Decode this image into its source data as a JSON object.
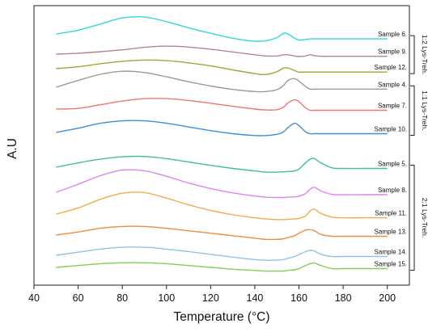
{
  "chart_data": {
    "type": "line",
    "title": "",
    "xlabel": "Temperature (°C)",
    "ylabel": "A.U",
    "xlim": [
      40,
      210
    ],
    "x_ticks": [
      "40",
      "60",
      "80",
      "100",
      "120",
      "140",
      "160",
      "180",
      "200"
    ],
    "y_ticks": [],
    "grid": false,
    "legend": "none",
    "x": [
      50,
      60,
      70,
      80,
      90,
      100,
      110,
      120,
      130,
      140,
      145,
      150,
      153,
      155,
      158,
      160,
      163,
      165,
      167,
      170,
      175,
      180,
      190,
      200
    ],
    "series": [
      {
        "name": "Sample 6.",
        "color": "#2fd8dc",
        "values": [
          0.0,
          0.12,
          0.32,
          0.52,
          0.55,
          0.4,
          0.2,
          0.02,
          -0.14,
          -0.24,
          -0.22,
          -0.12,
          0.02,
          0.0,
          -0.14,
          -0.2,
          -0.18,
          -0.16,
          -0.16,
          -0.16,
          -0.16,
          -0.16,
          -0.16,
          -0.16
        ]
      },
      {
        "name": "Sample 9.",
        "color": "#b5868a",
        "values": [
          0.0,
          0.03,
          0.08,
          0.14,
          0.22,
          0.26,
          0.23,
          0.16,
          0.07,
          -0.02,
          -0.06,
          -0.06,
          -0.02,
          -0.02,
          -0.06,
          -0.08,
          -0.06,
          -0.02,
          -0.05,
          -0.07,
          -0.07,
          -0.07,
          -0.07,
          -0.07
        ]
      },
      {
        "name": "Sample 12.",
        "color": "#a3a63a",
        "values": [
          0.0,
          0.06,
          0.16,
          0.24,
          0.28,
          0.26,
          0.19,
          0.09,
          -0.04,
          -0.16,
          -0.19,
          -0.1,
          0.02,
          0.02,
          -0.06,
          -0.11,
          -0.11,
          -0.11,
          -0.11,
          -0.11,
          -0.11,
          -0.11,
          -0.11,
          -0.11
        ]
      },
      {
        "name": "Sample 4.",
        "color": "#9a9a9a",
        "values": [
          0.0,
          0.22,
          0.42,
          0.52,
          0.48,
          0.34,
          0.18,
          0.04,
          -0.07,
          -0.14,
          -0.14,
          -0.08,
          0.06,
          0.22,
          0.28,
          0.2,
          0.02,
          -0.06,
          -0.06,
          -0.06,
          -0.06,
          -0.06,
          -0.06,
          -0.06
        ]
      },
      {
        "name": "Sample 7.",
        "color": "#f2766d",
        "values": [
          0.0,
          0.02,
          0.14,
          0.26,
          0.34,
          0.34,
          0.28,
          0.19,
          0.09,
          0.0,
          -0.03,
          -0.02,
          0.06,
          0.2,
          0.3,
          0.24,
          0.04,
          -0.04,
          -0.04,
          -0.04,
          -0.04,
          -0.04,
          -0.04,
          -0.04
        ]
      },
      {
        "name": "Sample 10.",
        "color": "#3c8fd6",
        "values": [
          0.0,
          0.14,
          0.3,
          0.38,
          0.38,
          0.3,
          0.18,
          0.06,
          -0.04,
          -0.1,
          -0.1,
          -0.06,
          0.02,
          0.16,
          0.3,
          0.22,
          0.02,
          -0.04,
          -0.04,
          -0.04,
          -0.04,
          -0.04,
          -0.04,
          -0.04
        ]
      },
      {
        "name": "Sample 5.",
        "color": "#3fc389",
        "values": [
          0.0,
          0.14,
          0.26,
          0.34,
          0.35,
          0.28,
          0.17,
          0.06,
          -0.04,
          -0.12,
          -0.16,
          -0.16,
          -0.15,
          -0.14,
          -0.12,
          -0.06,
          0.14,
          0.26,
          0.28,
          0.14,
          -0.02,
          -0.04,
          -0.04,
          -0.04
        ]
      },
      {
        "name": "Sample 8.",
        "color": "#dd84ee",
        "values": [
          0.0,
          0.26,
          0.54,
          0.72,
          0.7,
          0.52,
          0.3,
          0.12,
          -0.02,
          -0.12,
          -0.16,
          -0.17,
          -0.17,
          -0.16,
          -0.15,
          -0.13,
          -0.04,
          0.1,
          0.16,
          0.04,
          -0.07,
          -0.08,
          -0.08,
          -0.08
        ]
      },
      {
        "name": "Sample 11.",
        "color": "#f0ac4a",
        "values": [
          0.0,
          0.2,
          0.48,
          0.68,
          0.7,
          0.52,
          0.3,
          0.12,
          -0.02,
          -0.12,
          -0.16,
          -0.18,
          -0.18,
          -0.17,
          -0.16,
          -0.14,
          -0.06,
          0.1,
          0.16,
          0.02,
          -0.1,
          -0.12,
          -0.12,
          -0.12
        ]
      },
      {
        "name": "Sample 13.",
        "color": "#f08a3c",
        "values": [
          0.0,
          0.1,
          0.22,
          0.28,
          0.28,
          0.22,
          0.14,
          0.06,
          -0.02,
          -0.1,
          -0.14,
          -0.14,
          -0.12,
          -0.08,
          -0.02,
          0.06,
          0.16,
          0.18,
          0.14,
          0.02,
          -0.04,
          -0.04,
          -0.04,
          -0.04
        ]
      },
      {
        "name": "Sample 14.",
        "color": "#8ec3e8",
        "values": [
          0.0,
          0.1,
          0.2,
          0.26,
          0.26,
          0.2,
          0.12,
          0.03,
          -0.06,
          -0.14,
          -0.16,
          -0.16,
          -0.14,
          -0.1,
          -0.04,
          0.02,
          0.12,
          0.16,
          0.14,
          0.03,
          -0.04,
          -0.04,
          -0.04,
          -0.04
        ]
      },
      {
        "name": "Sample 15.",
        "color": "#7ed05a",
        "values": [
          0.0,
          0.06,
          0.12,
          0.15,
          0.15,
          0.12,
          0.06,
          0.0,
          -0.06,
          -0.1,
          -0.12,
          -0.12,
          -0.12,
          -0.1,
          -0.08,
          -0.04,
          0.06,
          0.12,
          0.14,
          0.06,
          -0.04,
          -0.04,
          -0.04,
          -0.04
        ]
      }
    ],
    "groups": [
      {
        "label": "1:2 Lys-Treh.",
        "members": [
          "Sample 6.",
          "Sample 9.",
          "Sample 12."
        ]
      },
      {
        "label": "1:1 Lys-Treh.",
        "members": [
          "Sample 4.",
          "Sample 7.",
          "Sample 10."
        ]
      },
      {
        "label": "2:1 Lys-Treh.",
        "members": [
          "Sample 5.",
          "Sample 8.",
          "Sample 11.",
          "Sample 13.",
          "Sample 14.",
          "Sample 15."
        ]
      }
    ]
  }
}
